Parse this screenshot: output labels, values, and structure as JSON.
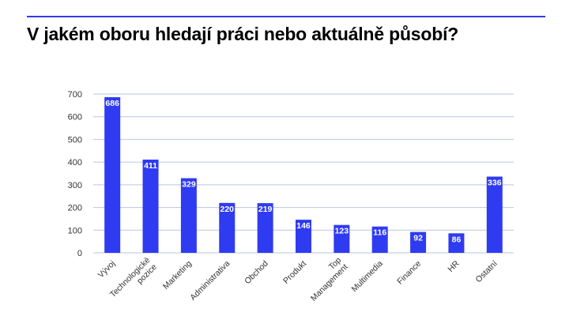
{
  "slide": {
    "title": "V jakém oboru hledají práci nebo aktuálně působí?",
    "accent_color": "#2f3bf0"
  },
  "chart_data": {
    "type": "bar",
    "title": "",
    "xlabel": "",
    "ylabel": "",
    "ylim": [
      0,
      700
    ],
    "yticks": [
      0,
      100,
      200,
      300,
      400,
      500,
      600,
      700
    ],
    "grid": true,
    "categories": [
      [
        "Vývoj"
      ],
      [
        "Technologické",
        "pozice"
      ],
      [
        "Marketing"
      ],
      [
        "Administrativa"
      ],
      [
        "Obchod"
      ],
      [
        "Produkt"
      ],
      [
        "Top",
        "Management"
      ],
      [
        "Multimedia"
      ],
      [
        "Finance"
      ],
      [
        "HR"
      ],
      [
        "Ostatní"
      ]
    ],
    "values": [
      686,
      411,
      329,
      220,
      219,
      146,
      123,
      116,
      92,
      86,
      336
    ],
    "data_labels": [
      "686",
      "411",
      "329",
      "220",
      "219",
      "146",
      "123",
      "116",
      "92",
      "86",
      "336"
    ],
    "bar_color": "#2f3bf0",
    "grid_color": "#b9c6e4"
  }
}
